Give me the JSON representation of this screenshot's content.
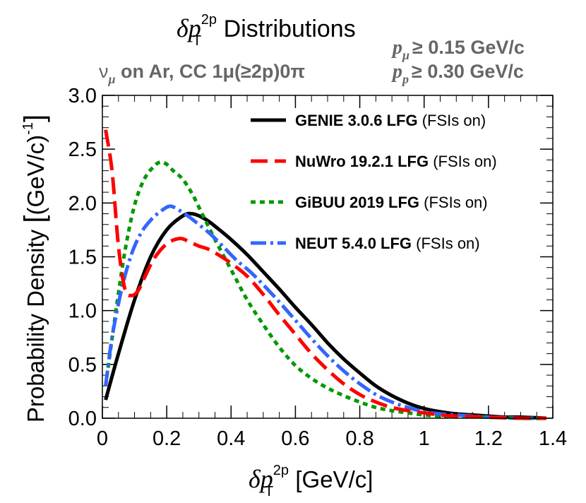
{
  "chart_data": {
    "type": "line",
    "title": "δp_T^2p Distributions",
    "title_parts": {
      "var": "δp",
      "sub": "T",
      "sup": "2p",
      "text": " Distributions"
    },
    "subtitle_left": {
      "nu": "ν",
      "nu_sub": "μ",
      "rest": " on Ar, CC 1μ(≥2p)0π"
    },
    "cuts": [
      {
        "var": "p",
        "sub": "μ",
        "text": "≥ 0.15 GeV/c"
      },
      {
        "var": "p",
        "sub": "p",
        "text": "≥ 0.30 GeV/c"
      }
    ],
    "xlabel": "δp_T^2p [GeV/c]",
    "xlabel_parts": {
      "var": "δp",
      "sub": "T",
      "sup": "2p",
      "text": " [GeV/c]"
    },
    "ylabel": "Probability Density [(GeV/c)^-1]",
    "ylabel_parts": {
      "text": "Probability Density ",
      "bracket_open": "[",
      "inner": "(GeV/c)",
      "sup": "-1",
      "bracket_close": "]"
    },
    "xlim": [
      0,
      1.4
    ],
    "ylim": [
      0,
      3.0
    ],
    "xticks": [
      0,
      0.2,
      0.4,
      0.6,
      0.8,
      1,
      1.2,
      1.4
    ],
    "xtick_labels": [
      "0",
      "0.2",
      "0.4",
      "0.6",
      "0.8",
      "1",
      "1.2",
      "1.4"
    ],
    "yticks": [
      0,
      0.5,
      1.0,
      1.5,
      2.0,
      2.5,
      3.0
    ],
    "ytick_labels": [
      "0.0",
      "0.5",
      "1.0",
      "1.5",
      "2.0",
      "2.5",
      "3.0"
    ],
    "legend_position": "top-right",
    "series": [
      {
        "name": "GENIE 3.0.6 LFG",
        "name_bold": "GENIE 3.0.6 LFG",
        "name_suffix": " (FSIs on)",
        "color": "#000000",
        "dash": "",
        "x": [
          0.01,
          0.05,
          0.1,
          0.15,
          0.2,
          0.25,
          0.28,
          0.32,
          0.36,
          0.4,
          0.45,
          0.5,
          0.55,
          0.6,
          0.65,
          0.7,
          0.75,
          0.8,
          0.85,
          0.9,
          0.95,
          1.0,
          1.05,
          1.1,
          1.15,
          1.2,
          1.25,
          1.3,
          1.38
        ],
        "y": [
          0.17,
          0.6,
          1.1,
          1.5,
          1.75,
          1.88,
          1.9,
          1.85,
          1.76,
          1.66,
          1.52,
          1.36,
          1.2,
          1.03,
          0.87,
          0.7,
          0.55,
          0.42,
          0.3,
          0.21,
          0.14,
          0.09,
          0.06,
          0.04,
          0.03,
          0.02,
          0.01,
          0.01,
          0.0
        ]
      },
      {
        "name": "NuWro 19.2.1 LFG",
        "name_bold": "NuWro 19.2.1 LFG",
        "name_suffix": " (FSIs on)",
        "color": "#ff0000",
        "dash": "24,10",
        "x": [
          0.01,
          0.03,
          0.05,
          0.07,
          0.09,
          0.11,
          0.13,
          0.16,
          0.2,
          0.24,
          0.27,
          0.3,
          0.33,
          0.36,
          0.4,
          0.45,
          0.5,
          0.55,
          0.6,
          0.65,
          0.7,
          0.75,
          0.8,
          0.85,
          0.9,
          0.95,
          1.0,
          1.05,
          1.1,
          1.2,
          1.3,
          1.38
        ],
        "y": [
          2.68,
          2.3,
          1.6,
          1.2,
          1.14,
          1.18,
          1.3,
          1.48,
          1.62,
          1.67,
          1.64,
          1.6,
          1.57,
          1.52,
          1.44,
          1.32,
          1.15,
          0.96,
          0.78,
          0.6,
          0.45,
          0.32,
          0.22,
          0.15,
          0.1,
          0.07,
          0.05,
          0.03,
          0.02,
          0.01,
          0.0,
          0.0
        ]
      },
      {
        "name": "GiBUU 2019 LFG",
        "name_bold": "GiBUU 2019 LFG",
        "name_suffix": " (FSIs on)",
        "color": "#009900",
        "dash": "7,6",
        "x": [
          0.01,
          0.04,
          0.07,
          0.1,
          0.13,
          0.16,
          0.18,
          0.2,
          0.22,
          0.25,
          0.28,
          0.31,
          0.35,
          0.4,
          0.45,
          0.5,
          0.55,
          0.6,
          0.65,
          0.7,
          0.75,
          0.8,
          0.85,
          0.9,
          0.95,
          1.0,
          1.05,
          1.1,
          1.2,
          1.3,
          1.38
        ],
        "y": [
          0.3,
          0.95,
          1.55,
          1.98,
          2.22,
          2.34,
          2.38,
          2.36,
          2.3,
          2.22,
          2.08,
          1.9,
          1.66,
          1.38,
          1.1,
          0.87,
          0.66,
          0.49,
          0.37,
          0.28,
          0.21,
          0.15,
          0.1,
          0.07,
          0.05,
          0.03,
          0.02,
          0.02,
          0.01,
          0.0,
          0.0
        ]
      },
      {
        "name": "NEUT 5.4.0 LFG",
        "name_bold": "NEUT 5.4.0 LFG",
        "name_suffix": " (FSIs on)",
        "color": "#3366ff",
        "dash": "22,6,4,6",
        "x": [
          0.01,
          0.03,
          0.06,
          0.09,
          0.12,
          0.15,
          0.18,
          0.21,
          0.24,
          0.27,
          0.3,
          0.34,
          0.38,
          0.42,
          0.46,
          0.5,
          0.55,
          0.6,
          0.65,
          0.7,
          0.75,
          0.8,
          0.85,
          0.9,
          0.95,
          1.0,
          1.05,
          1.1,
          1.2,
          1.3,
          1.38
        ],
        "y": [
          0.3,
          0.75,
          1.2,
          1.52,
          1.72,
          1.84,
          1.92,
          1.97,
          1.93,
          1.87,
          1.8,
          1.7,
          1.58,
          1.46,
          1.36,
          1.24,
          1.08,
          0.91,
          0.74,
          0.58,
          0.44,
          0.32,
          0.22,
          0.15,
          0.1,
          0.06,
          0.04,
          0.03,
          0.01,
          0.0,
          0.0
        ]
      }
    ]
  }
}
